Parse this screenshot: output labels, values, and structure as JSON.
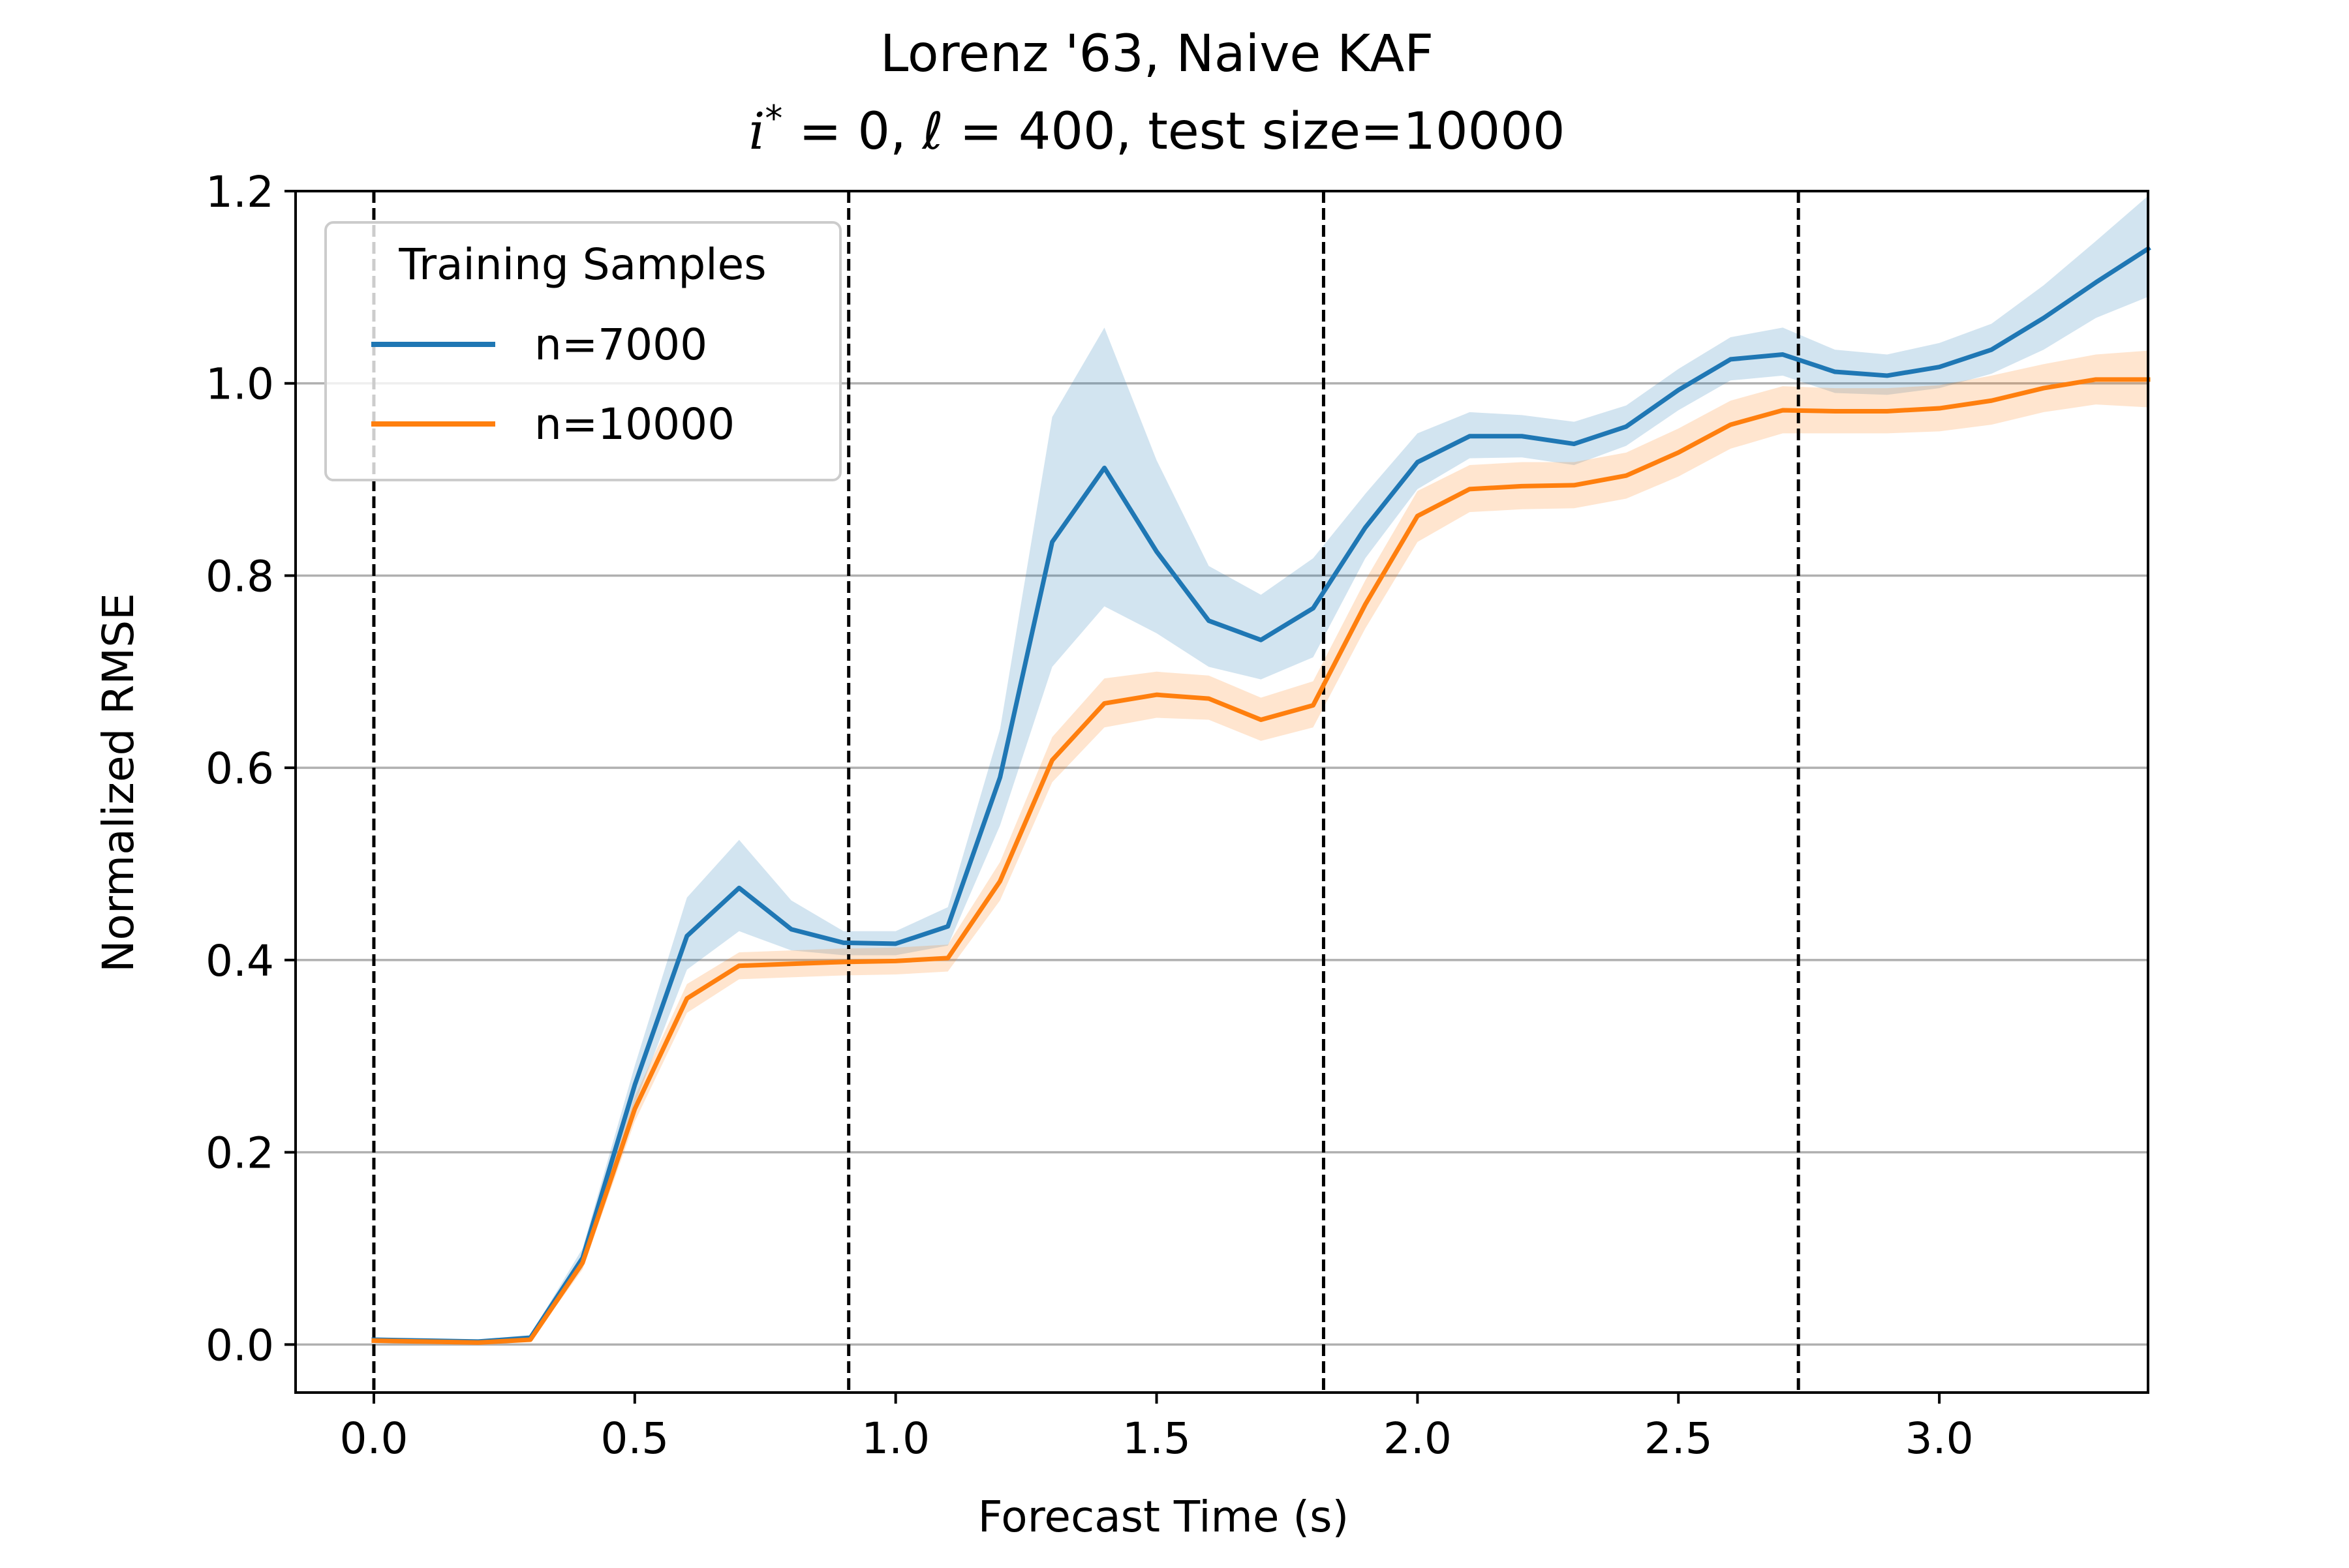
{
  "chart_data": {
    "type": "line",
    "title_line1": "Lorenz '63, Naive KAF",
    "title_line2": {
      "i_symbol": "i",
      "i_superscript": "*",
      "eq_part1": " = 0, ",
      "ell_symbol": "ℓ",
      "eq_part2": " = 400, test size=10000"
    },
    "xlabel": "Forecast Time (s)",
    "ylabel": "Normalized RMSE",
    "xlim": [
      -0.15,
      3.4
    ],
    "ylim": [
      -0.05,
      1.2
    ],
    "xticks": [
      0.0,
      0.5,
      1.0,
      1.5,
      2.0,
      2.5,
      3.0
    ],
    "xtick_labels": [
      "0.0",
      "0.5",
      "1.0",
      "1.5",
      "2.0",
      "2.5",
      "3.0"
    ],
    "yticks": [
      0.0,
      0.2,
      0.4,
      0.6,
      0.8,
      1.0,
      1.2
    ],
    "ytick_labels": [
      "0.0",
      "0.2",
      "0.4",
      "0.6",
      "0.8",
      "1.0",
      "1.2"
    ],
    "grid": "horizontal",
    "vlines": [
      0.0,
      0.91,
      1.82,
      2.73
    ],
    "legend": {
      "title": "Training Samples",
      "placement": "top-left"
    },
    "x": [
      0.0,
      0.1,
      0.2,
      0.3,
      0.4,
      0.5,
      0.6,
      0.7,
      0.8,
      0.9,
      1.0,
      1.1,
      1.2,
      1.3,
      1.4,
      1.5,
      1.6,
      1.7,
      1.8,
      1.9,
      2.0,
      2.1,
      2.2,
      2.3,
      2.4,
      2.5,
      2.6,
      2.7,
      2.8,
      2.9,
      3.0,
      3.1,
      3.2,
      3.3,
      3.4
    ],
    "series": [
      {
        "name": "n=7000",
        "color": "#1f77b4",
        "values": [
          0.005,
          0.004,
          0.003,
          0.007,
          0.09,
          0.27,
          0.425,
          0.475,
          0.432,
          0.418,
          0.417,
          0.435,
          0.59,
          0.835,
          0.912,
          0.825,
          0.753,
          0.733,
          0.766,
          0.85,
          0.918,
          0.945,
          0.945,
          0.937,
          0.955,
          0.993,
          1.025,
          1.03,
          1.012,
          1.008,
          1.017,
          1.035,
          1.068,
          1.105,
          1.14
        ],
        "lower": [
          0.003,
          0.002,
          0.001,
          0.004,
          0.08,
          0.25,
          0.39,
          0.43,
          0.41,
          0.405,
          0.405,
          0.415,
          0.54,
          0.705,
          0.768,
          0.74,
          0.705,
          0.692,
          0.715,
          0.818,
          0.89,
          0.922,
          0.923,
          0.915,
          0.935,
          0.972,
          1.003,
          1.008,
          0.99,
          0.988,
          0.995,
          1.01,
          1.035,
          1.068,
          1.09
        ],
        "upper": [
          0.007,
          0.006,
          0.005,
          0.01,
          0.1,
          0.29,
          0.465,
          0.525,
          0.462,
          0.43,
          0.43,
          0.455,
          0.64,
          0.965,
          1.058,
          0.92,
          0.81,
          0.78,
          0.818,
          0.885,
          0.948,
          0.97,
          0.967,
          0.96,
          0.977,
          1.015,
          1.048,
          1.058,
          1.035,
          1.03,
          1.042,
          1.062,
          1.102,
          1.148,
          1.195
        ]
      },
      {
        "name": "n=10000",
        "color": "#ff7f0e",
        "values": [
          0.004,
          0.003,
          0.002,
          0.005,
          0.085,
          0.245,
          0.36,
          0.394,
          0.396,
          0.398,
          0.399,
          0.402,
          0.482,
          0.608,
          0.667,
          0.676,
          0.672,
          0.65,
          0.665,
          0.77,
          0.862,
          0.89,
          0.893,
          0.894,
          0.904,
          0.928,
          0.957,
          0.972,
          0.971,
          0.971,
          0.974,
          0.982,
          0.995,
          1.004,
          1.004
        ],
        "lower": [
          0.002,
          0.001,
          0.0,
          0.003,
          0.078,
          0.232,
          0.345,
          0.38,
          0.382,
          0.384,
          0.385,
          0.388,
          0.462,
          0.585,
          0.642,
          0.652,
          0.65,
          0.628,
          0.642,
          0.745,
          0.835,
          0.866,
          0.869,
          0.87,
          0.88,
          0.903,
          0.932,
          0.948,
          0.948,
          0.948,
          0.95,
          0.957,
          0.97,
          0.978,
          0.975
        ],
        "upper": [
          0.006,
          0.005,
          0.004,
          0.007,
          0.092,
          0.258,
          0.375,
          0.408,
          0.41,
          0.412,
          0.413,
          0.416,
          0.502,
          0.632,
          0.693,
          0.7,
          0.696,
          0.673,
          0.69,
          0.795,
          0.888,
          0.915,
          0.918,
          0.918,
          0.928,
          0.953,
          0.982,
          0.997,
          0.995,
          0.995,
          0.998,
          1.008,
          1.02,
          1.03,
          1.034
        ]
      }
    ]
  }
}
